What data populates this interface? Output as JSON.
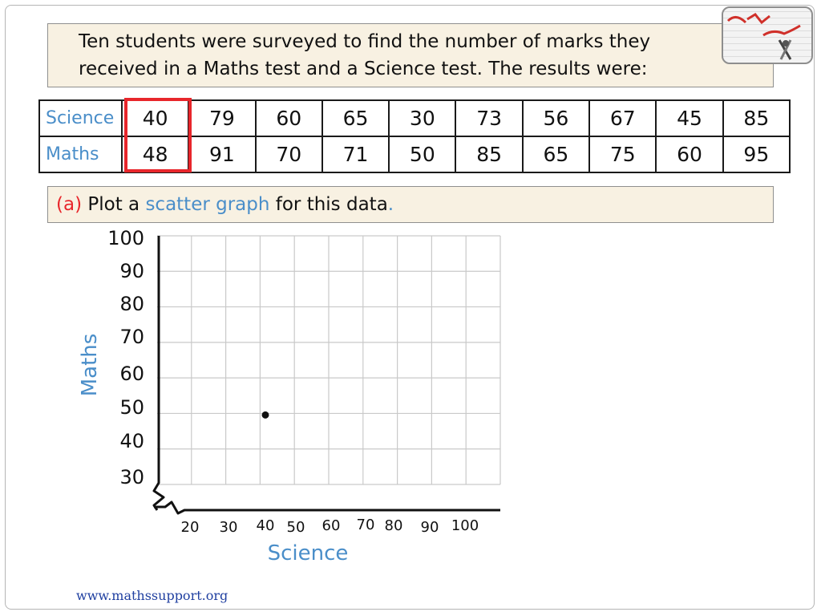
{
  "intro": {
    "line1": "Ten students were surveyed to find the number of marks they",
    "line2": "received in a Maths test and a Science test. The results were:"
  },
  "table": {
    "rows": [
      {
        "label": "Science",
        "values": [
          "40",
          "79",
          "60",
          "65",
          "30",
          "73",
          "56",
          "67",
          "45",
          "85"
        ]
      },
      {
        "label": "Maths",
        "values": [
          "48",
          "91",
          "70",
          "71",
          "50",
          "85",
          "65",
          "75",
          "60",
          "95"
        ]
      }
    ]
  },
  "question": {
    "part": "(a)",
    "text_before": "Plot a",
    "highlight": "scatter graph",
    "text_after": "for this data",
    "period": "."
  },
  "footer": "www.mathssupport.org",
  "colors": {
    "accent": "#4a8ec9",
    "highlight": "#e8262b",
    "parchment": "#f8f1e2"
  },
  "chart_data": {
    "type": "scatter",
    "xlabel": "Science",
    "ylabel": "Maths",
    "x_ticks": [
      "20",
      "30",
      "40",
      "50",
      "60",
      "70",
      "80",
      "90",
      "100"
    ],
    "y_ticks": [
      "30",
      "40",
      "50",
      "60",
      "70",
      "80",
      "90",
      "100"
    ],
    "xlim": [
      20,
      100
    ],
    "ylim": [
      30,
      100
    ],
    "grid": true,
    "axis_break": true,
    "points": [
      {
        "x": 40,
        "y": 48
      }
    ]
  }
}
